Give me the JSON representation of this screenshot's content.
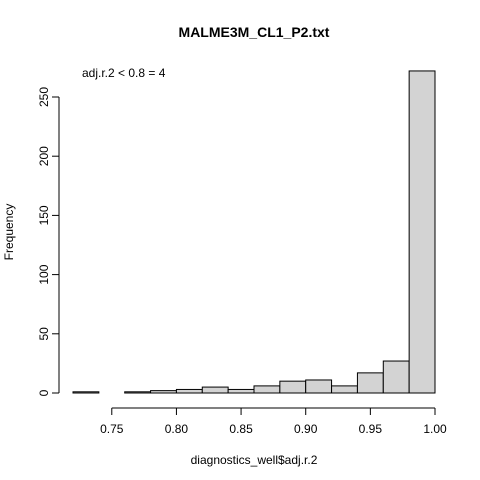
{
  "chart_data": {
    "type": "bar",
    "title": "MALME3M_CL1_P2.txt",
    "xlabel": "diagnostics_well$adj.r.2",
    "ylabel": "Frequency",
    "annotation": "adj.r.2 < 0.8 = 4",
    "xlim": [
      0.72,
      1.0
    ],
    "ylim": [
      0,
      270
    ],
    "bins": [
      {
        "x0": 0.72,
        "x1": 0.74,
        "count": 1
      },
      {
        "x0": 0.74,
        "x1": 0.76,
        "count": 0
      },
      {
        "x0": 0.76,
        "x1": 0.78,
        "count": 1
      },
      {
        "x0": 0.78,
        "x1": 0.8,
        "count": 2
      },
      {
        "x0": 0.8,
        "x1": 0.82,
        "count": 3
      },
      {
        "x0": 0.82,
        "x1": 0.84,
        "count": 5
      },
      {
        "x0": 0.84,
        "x1": 0.86,
        "count": 3
      },
      {
        "x0": 0.86,
        "x1": 0.88,
        "count": 6
      },
      {
        "x0": 0.88,
        "x1": 0.9,
        "count": 10
      },
      {
        "x0": 0.9,
        "x1": 0.92,
        "count": 11
      },
      {
        "x0": 0.92,
        "x1": 0.94,
        "count": 6
      },
      {
        "x0": 0.94,
        "x1": 0.96,
        "count": 17
      },
      {
        "x0": 0.96,
        "x1": 0.98,
        "count": 27
      },
      {
        "x0": 0.98,
        "x1": 1.0,
        "count": 272
      }
    ],
    "x_ticks": [
      {
        "value": 0.75,
        "label": "0.75"
      },
      {
        "value": 0.8,
        "label": "0.80"
      },
      {
        "value": 0.85,
        "label": "0.85"
      },
      {
        "value": 0.9,
        "label": "0.90"
      },
      {
        "value": 0.95,
        "label": "0.95"
      },
      {
        "value": 1.0,
        "label": "1.00"
      }
    ],
    "y_ticks": [
      {
        "value": 0,
        "label": "0"
      },
      {
        "value": 50,
        "label": "50"
      },
      {
        "value": 100,
        "label": "100"
      },
      {
        "value": 150,
        "label": "150"
      },
      {
        "value": 200,
        "label": "200"
      },
      {
        "value": 250,
        "label": "250"
      }
    ],
    "bar_fill": "#d3d3d3",
    "bar_stroke": "#000000",
    "grid": false,
    "legend": "none"
  }
}
